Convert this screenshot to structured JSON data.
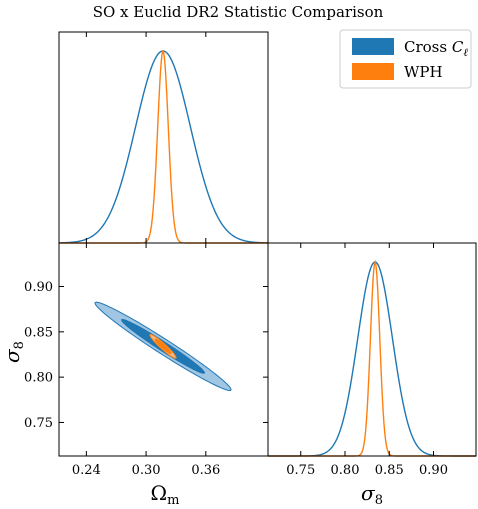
{
  "title": "SO x Euclid DR2 Statistic Comparison",
  "colors": {
    "cross": "#1f77b4",
    "wph": "#ff7f0e"
  },
  "legend": {
    "position": "top-right",
    "entries": [
      {
        "label": "Cross ",
        "label_math": "C",
        "label_sub": "ℓ",
        "color": "#1f77b4"
      },
      {
        "label": "WPH",
        "color": "#ff7f0e"
      }
    ]
  },
  "axes": {
    "omega": {
      "main": "Ω",
      "sub": "m"
    },
    "sigma": {
      "main": "σ",
      "sub": "8"
    }
  },
  "ticks": {
    "omega": {
      "values": [
        0.24,
        0.3,
        0.36
      ],
      "labels": [
        "0.24",
        "0.30",
        "0.36"
      ]
    },
    "sigma_y": {
      "values": [
        0.75,
        0.8,
        0.85,
        0.9
      ],
      "labels": [
        "0.75",
        "0.80",
        "0.85",
        "0.90"
      ]
    },
    "sigma_x": {
      "values": [
        0.75,
        0.8,
        0.85,
        0.9
      ],
      "labels": [
        "0.75",
        "0.80",
        "0.85",
        "0.90"
      ]
    }
  },
  "chart_data": {
    "type": "corner",
    "parameters": [
      "Omega_m",
      "sigma_8"
    ],
    "ranges": {
      "Omega_m": [
        0.2125,
        0.4225
      ],
      "sigma_8": [
        0.713,
        0.948
      ]
    },
    "grid": false,
    "series": [
      {
        "name": "Cross C_ell",
        "color": "#1f77b4",
        "mean": {
          "Omega_m": 0.317,
          "sigma_8": 0.834
        },
        "std": {
          "Omega_m": 0.0275,
          "sigma_8": 0.0196
        },
        "correlation": -0.98,
        "contour_levels_sigma": [
          1,
          2
        ]
      },
      {
        "name": "WPH",
        "color": "#ff7f0e",
        "mean": {
          "Omega_m": 0.317,
          "sigma_8": 0.834
        },
        "std": {
          "Omega_m": 0.0053,
          "sigma_8": 0.0053
        },
        "correlation": -0.95,
        "contour_levels_sigma": [
          1,
          2
        ]
      }
    ]
  }
}
